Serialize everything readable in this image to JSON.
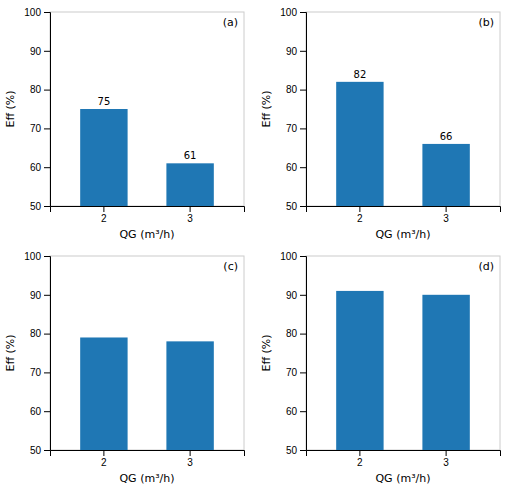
{
  "chart_data": [
    {
      "type": "bar",
      "title": "(a)",
      "categories": [
        "2",
        "3"
      ],
      "values": [
        75,
        61
      ],
      "xlabel": "QG (m³/h)",
      "ylabel": "Eff (%)",
      "ylim": [
        50,
        100
      ],
      "yticks": [
        50,
        60,
        70,
        80,
        90,
        100
      ],
      "data_labels": true
    },
    {
      "type": "bar",
      "title": "(b)",
      "categories": [
        "2",
        "3"
      ],
      "values": [
        82,
        66
      ],
      "xlabel": "QG (m³/h)",
      "ylabel": "Eff (%)",
      "ylim": [
        50,
        100
      ],
      "yticks": [
        50,
        60,
        70,
        80,
        90,
        100
      ],
      "data_labels": true
    },
    {
      "type": "bar",
      "title": "(c)",
      "categories": [
        "2",
        "3"
      ],
      "values": [
        79,
        78
      ],
      "xlabel": "QG (m³/h)",
      "ylabel": "Eff (%)",
      "ylim": [
        50,
        100
      ],
      "yticks": [
        50,
        60,
        70,
        80,
        90,
        100
      ],
      "data_labels": false
    },
    {
      "type": "bar",
      "title": "(d)",
      "categories": [
        "2",
        "3"
      ],
      "values": [
        91,
        90
      ],
      "xlabel": "QG (m³/h)",
      "ylabel": "Eff (%)",
      "ylim": [
        50,
        100
      ],
      "yticks": [
        50,
        60,
        70,
        80,
        90,
        100
      ],
      "data_labels": false
    }
  ]
}
